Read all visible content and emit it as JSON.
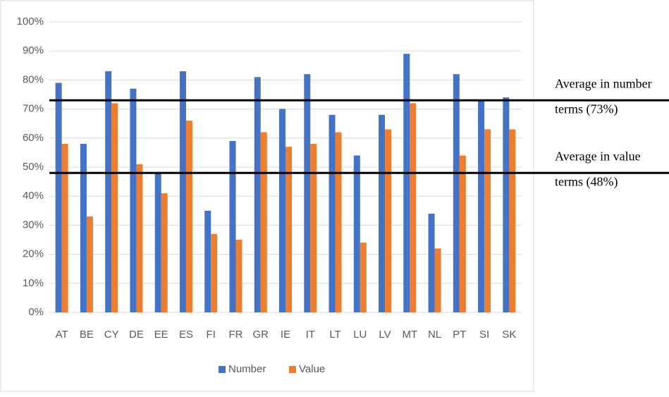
{
  "chart_data": {
    "type": "bar",
    "categories": [
      "AT",
      "BE",
      "CY",
      "DE",
      "EE",
      "ES",
      "FI",
      "FR",
      "GR",
      "IE",
      "IT",
      "LT",
      "LU",
      "LV",
      "MT",
      "NL",
      "PT",
      "SI",
      "SK"
    ],
    "series": [
      {
        "name": "Number",
        "color": "#4472c4",
        "values": [
          79,
          58,
          83,
          77,
          48,
          83,
          35,
          59,
          81,
          70,
          82,
          68,
          54,
          68,
          89,
          34,
          82,
          73,
          74
        ]
      },
      {
        "name": "Value",
        "color": "#ed7d31",
        "values": [
          58,
          33,
          72,
          51,
          41,
          66,
          27,
          25,
          62,
          57,
          58,
          62,
          24,
          63,
          72,
          22,
          54,
          63,
          63
        ]
      }
    ],
    "ylim": [
      0,
      100
    ],
    "yticks": [
      {
        "value": 0,
        "label": "0%"
      },
      {
        "value": 10,
        "label": "10%"
      },
      {
        "value": 20,
        "label": "20%"
      },
      {
        "value": 30,
        "label": "30%"
      },
      {
        "value": 40,
        "label": "40%"
      },
      {
        "value": 50,
        "label": "50%"
      },
      {
        "value": 60,
        "label": "60%"
      },
      {
        "value": 70,
        "label": "70%"
      },
      {
        "value": 80,
        "label": "80%"
      },
      {
        "value": 90,
        "label": "90%"
      },
      {
        "value": 100,
        "label": "100%"
      }
    ],
    "grid": true,
    "legend": "bottom",
    "reference_lines": [
      {
        "value": 73,
        "color": "#000000",
        "lines": [
          "Average in number",
          "terms (73%)"
        ]
      },
      {
        "value": 48,
        "color": "#000000",
        "lines": [
          "Average in value",
          "terms (48%)"
        ]
      }
    ]
  }
}
